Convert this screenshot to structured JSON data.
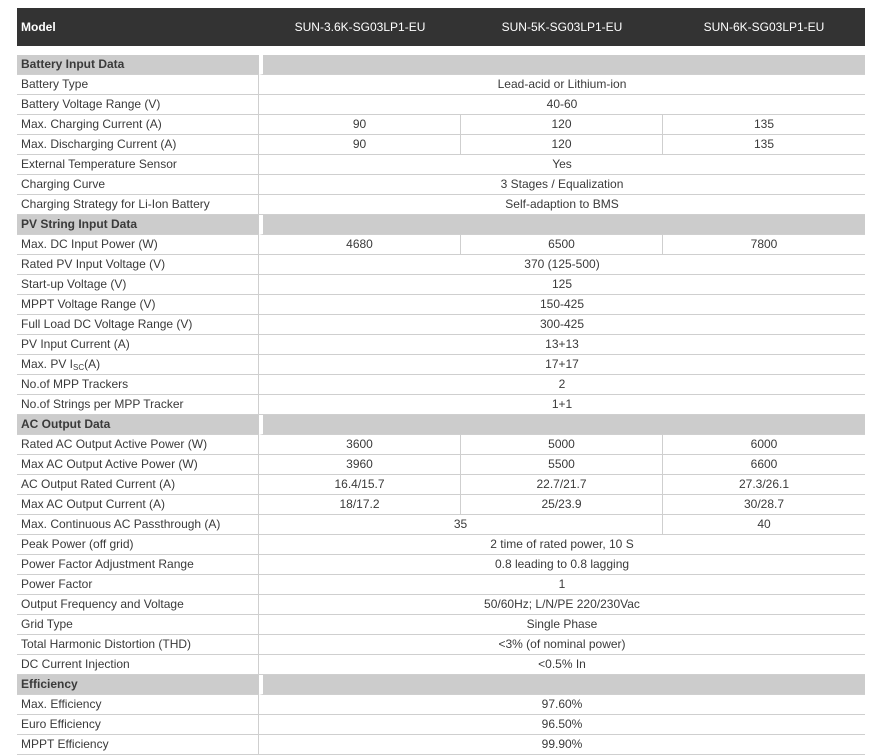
{
  "header": {
    "model_label": "Model",
    "models": [
      "SUN-3.6K-SG03LP1-EU",
      "SUN-5K-SG03LP1-EU",
      "SUN-6K-SG03LP1-EU"
    ]
  },
  "sections": [
    {
      "title": "Battery Input Data",
      "rows": [
        {
          "label": "Battery Type",
          "values": [
            "Lead-acid or Lithium-ion"
          ],
          "spans": [
            3
          ]
        },
        {
          "label": "Battery Voltage Range (V)",
          "values": [
            "40-60"
          ],
          "spans": [
            3
          ]
        },
        {
          "label": "Max. Charging Current (A)",
          "values": [
            "90",
            "120",
            "135"
          ],
          "spans": [
            1,
            1,
            1
          ]
        },
        {
          "label": "Max. Discharging Current (A)",
          "values": [
            "90",
            "120",
            "135"
          ],
          "spans": [
            1,
            1,
            1
          ]
        },
        {
          "label": "External Temperature Sensor",
          "values": [
            "Yes"
          ],
          "spans": [
            3
          ]
        },
        {
          "label": "Charging Curve",
          "values": [
            "3 Stages / Equalization"
          ],
          "spans": [
            3
          ]
        },
        {
          "label": "Charging Strategy for Li-Ion Battery",
          "values": [
            "Self-adaption to BMS"
          ],
          "spans": [
            3
          ]
        }
      ]
    },
    {
      "title": "PV String Input Data",
      "rows": [
        {
          "label": "Max. DC Input Power (W)",
          "values": [
            "4680",
            "6500",
            "7800"
          ],
          "spans": [
            1,
            1,
            1
          ]
        },
        {
          "label": "Rated PV Input Voltage (V)",
          "values": [
            "370 (125-500)"
          ],
          "spans": [
            3
          ]
        },
        {
          "label": "Start-up Voltage (V)",
          "values": [
            "125"
          ],
          "spans": [
            3
          ]
        },
        {
          "label": "MPPT Voltage Range (V)",
          "values": [
            "150-425"
          ],
          "spans": [
            3
          ]
        },
        {
          "label": "Full Load DC Voltage Range (V)",
          "values": [
            "300-425"
          ],
          "spans": [
            3
          ]
        },
        {
          "label": "PV Input Current (A)",
          "values": [
            "13+13"
          ],
          "spans": [
            3
          ]
        },
        {
          "label": "Max. PV I",
          "label_sub": "SC",
          "label_suffix": "(A)",
          "values": [
            "17+17"
          ],
          "spans": [
            3
          ]
        },
        {
          "label": "No.of MPP Trackers",
          "values": [
            "2"
          ],
          "spans": [
            3
          ]
        },
        {
          "label": "No.of Strings per MPP Tracker",
          "values": [
            "1+1"
          ],
          "spans": [
            3
          ]
        }
      ]
    },
    {
      "title": "AC Output Data",
      "rows": [
        {
          "label": "Rated AC Output Active Power (W)",
          "values": [
            "3600",
            "5000",
            "6000"
          ],
          "spans": [
            1,
            1,
            1
          ]
        },
        {
          "label": "Max AC Output Active Power (W)",
          "values": [
            "3960",
            "5500",
            "6600"
          ],
          "spans": [
            1,
            1,
            1
          ]
        },
        {
          "label": "AC Output Rated Current (A)",
          "values": [
            "16.4/15.7",
            "22.7/21.7",
            "27.3/26.1"
          ],
          "spans": [
            1,
            1,
            1
          ]
        },
        {
          "label": "Max AC Output Current (A)",
          "values": [
            "18/17.2",
            "25/23.9",
            "30/28.7"
          ],
          "spans": [
            1,
            1,
            1
          ]
        },
        {
          "label": "Max. Continuous AC Passthrough (A)",
          "values": [
            "35",
            "40"
          ],
          "spans": [
            2,
            1
          ]
        },
        {
          "label": "Peak Power (off grid)",
          "values": [
            "2 time of rated power, 10 S"
          ],
          "spans": [
            3
          ]
        },
        {
          "label": "Power Factor Adjustment Range",
          "values": [
            "0.8 leading to 0.8 lagging"
          ],
          "spans": [
            3
          ]
        },
        {
          "label": "Power Factor",
          "values": [
            "1"
          ],
          "spans": [
            3
          ]
        },
        {
          "label": "Output Frequency and Voltage",
          "values": [
            "50/60Hz; L/N/PE 220/230Vac"
          ],
          "spans": [
            3
          ]
        },
        {
          "label": "Grid Type",
          "values": [
            "Single Phase"
          ],
          "spans": [
            3
          ]
        },
        {
          "label": "Total Harmonic Distortion (THD)",
          "values": [
            "<3% (of nominal power)"
          ],
          "spans": [
            3
          ]
        },
        {
          "label": "DC Current Injection",
          "values": [
            "<0.5% In"
          ],
          "spans": [
            3
          ]
        }
      ]
    },
    {
      "title": "Efficiency",
      "rows": [
        {
          "label": "Max. Efficiency",
          "values": [
            "97.60%"
          ],
          "spans": [
            3
          ]
        },
        {
          "label": "Euro Efficiency",
          "values": [
            "96.50%"
          ],
          "spans": [
            3
          ]
        },
        {
          "label": "MPPT Efficiency",
          "values": [
            "99.90%"
          ],
          "spans": [
            3
          ]
        }
      ]
    }
  ]
}
